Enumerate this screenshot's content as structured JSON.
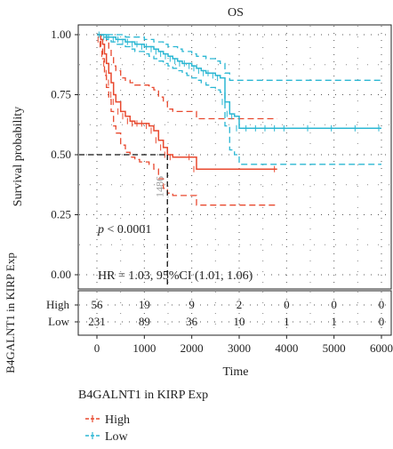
{
  "chart_data": {
    "type": "line",
    "title": "OS",
    "xlabel": "Time",
    "ylabel": "Survival probability",
    "xlim": [
      0,
      6000
    ],
    "ylim": [
      0,
      1
    ],
    "x_ticks": [
      "0",
      "1000",
      "2000",
      "3000",
      "4000",
      "5000",
      "6000"
    ],
    "y_ticks": [
      "0.00",
      "0.25",
      "0.50",
      "0.75",
      "1.00"
    ],
    "grid": "dotted",
    "colors": {
      "High": "#e8492f",
      "Low": "#2bb7d3"
    },
    "median_survival": {
      "x": 1486,
      "y": 0.5,
      "label": "1486"
    },
    "annotations": {
      "pvalue_p": "p",
      "pvalue_rest": " < 0.0001",
      "hr": "HR = 1.03, 95%CI (1.01, 1.06)"
    },
    "series": [
      {
        "name": "High",
        "x": [
          0,
          80,
          120,
          160,
          200,
          250,
          300,
          350,
          400,
          500,
          600,
          700,
          800,
          900,
          1000,
          1100,
          1200,
          1300,
          1400,
          1486,
          1600,
          2000,
          2100,
          3800
        ],
        "y": [
          1.0,
          0.98,
          0.96,
          0.92,
          0.88,
          0.84,
          0.8,
          0.75,
          0.72,
          0.68,
          0.66,
          0.64,
          0.63,
          0.63,
          0.63,
          0.62,
          0.6,
          0.56,
          0.53,
          0.5,
          0.49,
          0.49,
          0.44,
          0.44
        ],
        "ci_upper": [
          1.0,
          1.0,
          1.0,
          0.99,
          0.97,
          0.94,
          0.91,
          0.87,
          0.85,
          0.82,
          0.81,
          0.8,
          0.79,
          0.79,
          0.79,
          0.78,
          0.77,
          0.74,
          0.72,
          0.69,
          0.68,
          0.68,
          0.65,
          0.65
        ],
        "ci_lower": [
          1.0,
          0.94,
          0.9,
          0.83,
          0.78,
          0.73,
          0.68,
          0.62,
          0.59,
          0.54,
          0.51,
          0.49,
          0.48,
          0.47,
          0.47,
          0.46,
          0.44,
          0.4,
          0.36,
          0.34,
          0.33,
          0.33,
          0.29,
          0.29
        ]
      },
      {
        "name": "Low",
        "x": [
          0,
          100,
          200,
          300,
          400,
          500,
          600,
          700,
          800,
          900,
          1000,
          1100,
          1200,
          1300,
          1400,
          1500,
          1600,
          1700,
          1800,
          1900,
          2000,
          2100,
          2200,
          2300,
          2400,
          2500,
          2600,
          2700,
          2800,
          2900,
          3000,
          3200,
          3400,
          3600,
          3800,
          4000,
          4500,
          5000,
          5500,
          6000
        ],
        "y": [
          1.0,
          1.0,
          0.99,
          0.99,
          0.98,
          0.98,
          0.97,
          0.97,
          0.96,
          0.96,
          0.95,
          0.95,
          0.94,
          0.93,
          0.92,
          0.91,
          0.9,
          0.89,
          0.88,
          0.88,
          0.87,
          0.86,
          0.85,
          0.84,
          0.84,
          0.83,
          0.82,
          0.72,
          0.67,
          0.66,
          0.61,
          0.61,
          0.61,
          0.61,
          0.61,
          0.61,
          0.61,
          0.61,
          0.61,
          0.61
        ],
        "ci_upper": [
          1.0,
          1.0,
          1.0,
          1.0,
          1.0,
          1.0,
          0.99,
          0.99,
          0.99,
          0.99,
          0.98,
          0.98,
          0.97,
          0.97,
          0.96,
          0.95,
          0.95,
          0.94,
          0.93,
          0.93,
          0.92,
          0.91,
          0.91,
          0.9,
          0.9,
          0.89,
          0.88,
          0.84,
          0.81,
          0.81,
          0.81,
          0.81,
          0.81,
          0.81,
          0.81,
          0.81,
          0.81,
          0.81,
          0.81,
          0.81
        ],
        "ci_lower": [
          1.0,
          0.99,
          0.98,
          0.97,
          0.96,
          0.96,
          0.95,
          0.94,
          0.93,
          0.93,
          0.92,
          0.91,
          0.9,
          0.89,
          0.88,
          0.87,
          0.86,
          0.85,
          0.84,
          0.83,
          0.82,
          0.81,
          0.8,
          0.79,
          0.78,
          0.77,
          0.76,
          0.62,
          0.52,
          0.5,
          0.46,
          0.46,
          0.46,
          0.46,
          0.46,
          0.46,
          0.46,
          0.46,
          0.46,
          0.46
        ]
      }
    ],
    "risk_table": {
      "ylabel": "B4GALNT1 in KIRP Exp",
      "groups": [
        "High",
        "Low"
      ],
      "times": [
        0,
        1000,
        2000,
        3000,
        4000,
        5000,
        6000
      ],
      "counts": [
        [
          "56",
          "19",
          "9",
          "2",
          "0",
          "0",
          "0"
        ],
        [
          "231",
          "89",
          "36",
          "10",
          "1",
          "1",
          "0"
        ]
      ]
    },
    "legend": {
      "title": "B4GALNT1 in KIRP Exp",
      "items": [
        "High",
        "Low"
      ]
    }
  }
}
